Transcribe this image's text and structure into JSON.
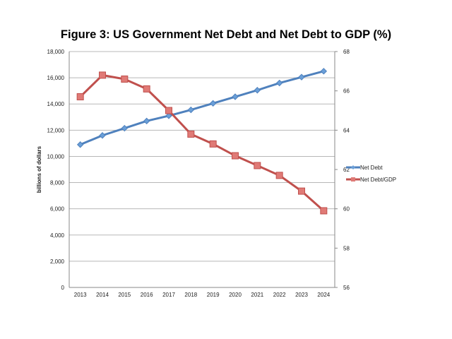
{
  "chart_data": {
    "type": "line",
    "title": "Figure 3: US Government Net Debt and Net Debt to GDP (%)",
    "xlabel": "",
    "ylabel": "billions of dollars",
    "y2label": "",
    "categories": [
      "2013",
      "2014",
      "2015",
      "2016",
      "2017",
      "2018",
      "2019",
      "2020",
      "2021",
      "2022",
      "2023",
      "2024"
    ],
    "ylim": [
      0,
      18000
    ],
    "y2lim": [
      56,
      68
    ],
    "yticks": [
      "0",
      "2,000",
      "4,000",
      "6,000",
      "8,000",
      "10,000",
      "12,000",
      "14,000",
      "16,000",
      "18,000"
    ],
    "y2ticks": [
      "56",
      "58",
      "60",
      "62",
      "64",
      "66",
      "68"
    ],
    "grid": true,
    "legend_position": "right",
    "series": [
      {
        "name": "Net Debt",
        "axis": "left",
        "color": "#4f81bd",
        "marker": "diamond",
        "values": [
          10900,
          11600,
          12150,
          12700,
          13100,
          13550,
          14050,
          14550,
          15050,
          15600,
          16050,
          16500
        ]
      },
      {
        "name": "Net Debt/GDP",
        "axis": "right",
        "color": "#c0504d",
        "marker": "square",
        "values": [
          65.7,
          66.8,
          66.6,
          66.1,
          65.0,
          63.8,
          63.3,
          62.7,
          62.2,
          61.7,
          60.9,
          59.9
        ]
      }
    ]
  }
}
